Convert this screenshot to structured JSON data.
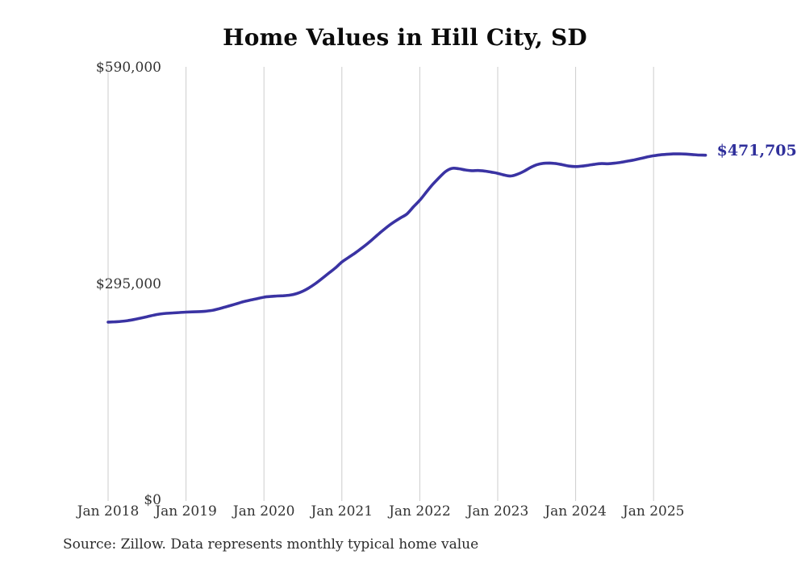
{
  "chart_data": {
    "type": "line",
    "title": "Home Values in Hill City, SD",
    "source": "Source: Zillow. Data represents monthly typical home value",
    "end_label": "$471,705",
    "end_value": 471705,
    "ylim": [
      0,
      590000
    ],
    "grid": "vertical-only",
    "legend": "none",
    "line_color": "#3a33a3",
    "end_label_color": "#2f2f9b",
    "grid_color": "#cccccc",
    "tick_color": "#333333",
    "x_start": "Jan 2018",
    "x_end": "Sep 2025",
    "x_ticks": [
      "Jan 2018",
      "Jan 2019",
      "Jan 2020",
      "Jan 2021",
      "Jan 2022",
      "Jan 2023",
      "Jan 2024",
      "Jan 2025"
    ],
    "y_ticks": [
      {
        "label": "$590,000",
        "value": 590000
      },
      {
        "label": "$295,000",
        "value": 295000
      },
      {
        "label": "$0",
        "value": 0
      }
    ],
    "series": [
      {
        "name": "Typical home value (monthly)",
        "unit": "USD",
        "values": [
          244000,
          244400,
          245000,
          246000,
          247500,
          249400,
          251400,
          253400,
          255000,
          256000,
          256600,
          257100,
          257600,
          258000,
          258300,
          258800,
          260000,
          262000,
          264500,
          267000,
          269600,
          272200,
          274200,
          276100,
          278000,
          279000,
          279600,
          280000,
          280800,
          282800,
          286200,
          291000,
          297000,
          303800,
          310900,
          317800,
          326000,
          332000,
          338000,
          344500,
          351500,
          359000,
          366800,
          374000,
          380400,
          386000,
          391400,
          401000,
          410200,
          421200,
          432000,
          441200,
          449600,
          453800,
          453200,
          451600,
          450600,
          450800,
          450000,
          448600,
          447000,
          444600,
          443300,
          445600,
          449600,
          454600,
          458600,
          460600,
          461000,
          460200,
          458600,
          456800,
          456200,
          456800,
          458000,
          459400,
          460200,
          460000,
          460800,
          462000,
          463600,
          465200,
          467200,
          469200,
          470900,
          472100,
          472900,
          473400,
          473500,
          473200,
          472500,
          471900,
          471705
        ]
      }
    ]
  }
}
